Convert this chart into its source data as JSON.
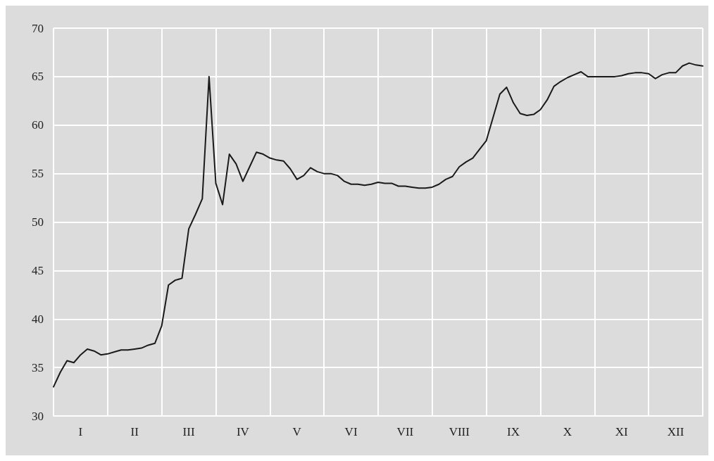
{
  "chart_data": {
    "type": "line",
    "categories": [
      null,
      null,
      null,
      null,
      "I",
      null,
      null,
      null,
      null,
      null,
      null,
      null,
      "II",
      null,
      null,
      null,
      null,
      null,
      null,
      null,
      "III",
      null,
      null,
      null,
      null,
      null,
      null,
      null,
      "IV",
      null,
      null,
      null,
      null,
      null,
      null,
      null,
      "V",
      null,
      null,
      null,
      null,
      null,
      null,
      null,
      "VI",
      null,
      null,
      null,
      null,
      null,
      null,
      null,
      "VII",
      null,
      null,
      null,
      null,
      null,
      null,
      null,
      "VIII",
      null,
      null,
      null,
      null,
      null,
      null,
      null,
      "IX",
      null,
      null,
      null,
      null,
      null,
      null,
      null,
      "X",
      null,
      null,
      null,
      null,
      null,
      null,
      null,
      "XI",
      null,
      null,
      null,
      null,
      null,
      null,
      null,
      "XII",
      null,
      null,
      null,
      null
    ],
    "series": [
      {
        "color": "#1a1a1a",
        "values": [
          33.0,
          34.5,
          35.7,
          35.5,
          36.3,
          36.9,
          36.7,
          36.3,
          36.4,
          36.6,
          36.8,
          36.8,
          36.9,
          37.0,
          37.3,
          37.5,
          39.3,
          43.5,
          44.0,
          44.2,
          49.3,
          50.8,
          52.4,
          65.0,
          54.0,
          51.8,
          57.0,
          56.0,
          54.2,
          55.7,
          57.2,
          57.0,
          56.6,
          56.4,
          56.3,
          55.5,
          54.4,
          54.8,
          55.6,
          55.2,
          55.0,
          55.0,
          54.8,
          54.2,
          53.9,
          53.9,
          53.8,
          53.9,
          54.1,
          54.0,
          54.0,
          53.7,
          53.7,
          53.6,
          53.5,
          53.5,
          53.6,
          53.9,
          54.4,
          54.7,
          55.7,
          56.2,
          56.6,
          57.5,
          58.4,
          60.8,
          63.2,
          63.9,
          62.3,
          61.2,
          61.0,
          61.1,
          61.6,
          62.6,
          64.0,
          64.5,
          64.9,
          65.2,
          65.5,
          65.0,
          65.0,
          65.0,
          65.0,
          65.0,
          65.1,
          65.3,
          65.4,
          65.4,
          65.3,
          64.8,
          65.2,
          65.4,
          65.4,
          66.1,
          66.4,
          66.2,
          66.1
        ]
      }
    ],
    "ylim": [
      30,
      70
    ],
    "yticks": [
      30,
      35,
      40,
      45,
      50,
      55,
      60,
      65,
      70
    ],
    "grid": true,
    "marker": "none",
    "line_style": "solid"
  }
}
